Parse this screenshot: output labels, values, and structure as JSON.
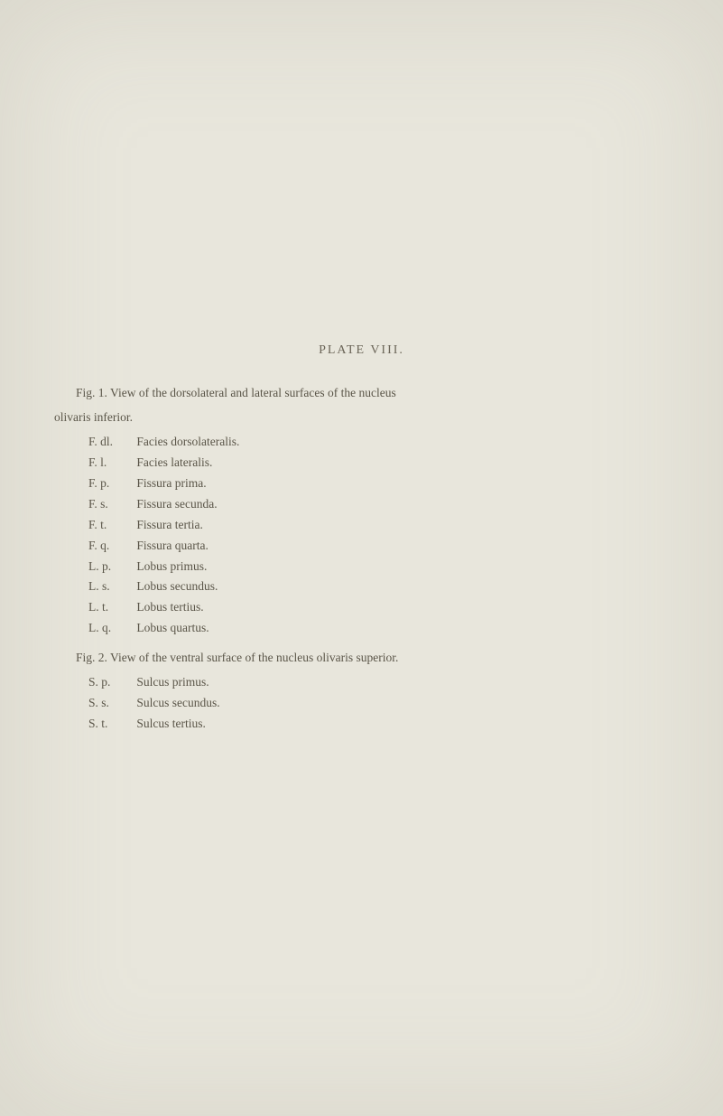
{
  "title": "PLATE VIII.",
  "fig1": {
    "intro_line1": "Fig. 1.  View of the dorsolateral and lateral surfaces of the nucleus",
    "intro_line2": "olivaris inferior.",
    "entries": [
      {
        "abbrev": "F. dl.",
        "text": "Facies dorsolateralis."
      },
      {
        "abbrev": "F. l.",
        "text": "Facies lateralis."
      },
      {
        "abbrev": "F. p.",
        "text": "Fissura prima."
      },
      {
        "abbrev": "F. s.",
        "text": "Fissura secunda."
      },
      {
        "abbrev": "F. t.",
        "text": "Fissura tertia."
      },
      {
        "abbrev": "F. q.",
        "text": "Fissura quarta."
      },
      {
        "abbrev": "L. p.",
        "text": "Lobus primus."
      },
      {
        "abbrev": "L. s.",
        "text": "Lobus secundus."
      },
      {
        "abbrev": "L. t.",
        "text": "Lobus tertius."
      },
      {
        "abbrev": "L. q.",
        "text": "Lobus quartus."
      }
    ]
  },
  "fig2": {
    "intro": "Fig. 2.  View of the ventral surface of the nucleus olivaris superior.",
    "entries": [
      {
        "abbrev": "S. p.",
        "text": "Sulcus primus."
      },
      {
        "abbrev": "S. s.",
        "text": "Sulcus secundus."
      },
      {
        "abbrev": "S. t.",
        "text": "Sulcus tertius."
      }
    ]
  },
  "colors": {
    "background": "#e8e6dc",
    "text": "#5a5548",
    "title": "#6b6558"
  },
  "typography": {
    "body_fontsize": 13.5,
    "title_fontsize": 14,
    "line_height": 1.7,
    "font_family": "Georgia, Times New Roman, serif"
  }
}
